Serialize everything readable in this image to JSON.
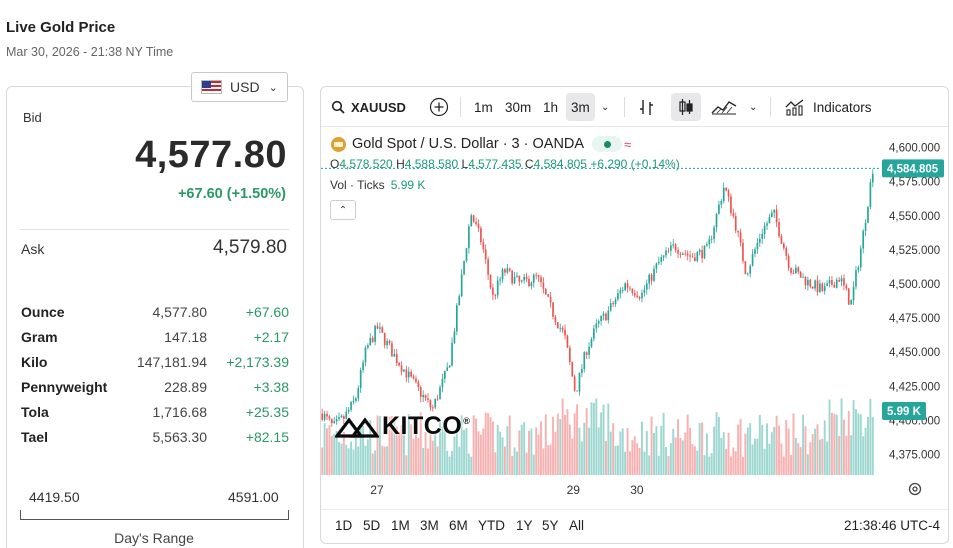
{
  "page": {
    "title": "Live Gold Price",
    "timestamp": "Mar 30, 2026 - 21:38 NY Time",
    "currency": "USD"
  },
  "quote": {
    "bid_label": "Bid",
    "bid": "4,577.80",
    "change": "+67.60 (+1.50%)",
    "ask_label": "Ask",
    "ask": "4,579.80"
  },
  "units": [
    {
      "name": "Ounce",
      "value": "4,577.80",
      "change": "+67.60"
    },
    {
      "name": "Gram",
      "value": "147.18",
      "change": "+2.17"
    },
    {
      "name": "Kilo",
      "value": "147,181.94",
      "change": "+2,173.39"
    },
    {
      "name": "Pennyweight",
      "value": "228.89",
      "change": "+3.38"
    },
    {
      "name": "Tola",
      "value": "1,716.68",
      "change": "+25.35"
    },
    {
      "name": "Tael",
      "value": "5,563.30",
      "change": "+82.15"
    }
  ],
  "day_range": {
    "low": "4419.50",
    "high": "4591.00",
    "label": "Day's Range"
  },
  "toolbar": {
    "symbol": "XAUUSD",
    "timeframes": [
      "1m",
      "30m",
      "1h",
      "3m"
    ],
    "selected": "3m",
    "indicators_label": "Indicators"
  },
  "legend": {
    "title": "Gold Spot / U.S. Dollar · 3 · OANDA",
    "approx": "≈",
    "o_label": "O",
    "o": "4,578.520",
    "h_label": "H",
    "h": "4,588.580",
    "l_label": "L",
    "l": "4,577.435",
    "c_label": "C",
    "c": "4,584.805",
    "chg": "+6.290 (+0.14%)",
    "vol_label": "Vol · Ticks",
    "vol_value": "5.99 K"
  },
  "ranges": [
    "1D",
    "5D",
    "1M",
    "3M",
    "6M",
    "YTD",
    "1Y",
    "5Y",
    "All"
  ],
  "clock": "21:38:46 UTC-4",
  "watermark": "KITCO",
  "colors": {
    "up": "#26a69a",
    "down": "#ef5350",
    "accent_green": "#2a9966"
  },
  "chart_data": {
    "type": "candlestick",
    "symbol": "XAUUSD",
    "interval": "3m",
    "y_ticks": [
      "4,375.000",
      "4,400.000",
      "4,425.000",
      "4,450.000",
      "4,475.000",
      "4,500.000",
      "4,525.000",
      "4,550.000",
      "4,575.000",
      "4,600.000"
    ],
    "y_range": [
      4360,
      4610
    ],
    "x_ticks": [
      {
        "label": "27",
        "t": 0.1
      },
      {
        "label": "29",
        "t": 0.455
      },
      {
        "label": "30",
        "t": 0.57
      }
    ],
    "last_price": "4,584.805",
    "last_volume": "5.99 K",
    "close_path": [
      {
        "t": 0.0,
        "y": 4405
      },
      {
        "t": 0.02,
        "y": 4395
      },
      {
        "t": 0.04,
        "y": 4402
      },
      {
        "t": 0.06,
        "y": 4415
      },
      {
        "t": 0.08,
        "y": 4452
      },
      {
        "t": 0.1,
        "y": 4468
      },
      {
        "t": 0.13,
        "y": 4448
      },
      {
        "t": 0.17,
        "y": 4425
      },
      {
        "t": 0.2,
        "y": 4408
      },
      {
        "t": 0.23,
        "y": 4440
      },
      {
        "t": 0.25,
        "y": 4495
      },
      {
        "t": 0.27,
        "y": 4552
      },
      {
        "t": 0.29,
        "y": 4530
      },
      {
        "t": 0.31,
        "y": 4490
      },
      {
        "t": 0.33,
        "y": 4510
      },
      {
        "t": 0.36,
        "y": 4500
      },
      {
        "t": 0.39,
        "y": 4505
      },
      {
        "t": 0.42,
        "y": 4478
      },
      {
        "t": 0.44,
        "y": 4462
      },
      {
        "t": 0.46,
        "y": 4420
      },
      {
        "t": 0.48,
        "y": 4452
      },
      {
        "t": 0.5,
        "y": 4470
      },
      {
        "t": 0.52,
        "y": 4480
      },
      {
        "t": 0.55,
        "y": 4500
      },
      {
        "t": 0.58,
        "y": 4492
      },
      {
        "t": 0.61,
        "y": 4515
      },
      {
        "t": 0.64,
        "y": 4528
      },
      {
        "t": 0.67,
        "y": 4520
      },
      {
        "t": 0.7,
        "y": 4525
      },
      {
        "t": 0.73,
        "y": 4572
      },
      {
        "t": 0.75,
        "y": 4545
      },
      {
        "t": 0.77,
        "y": 4508
      },
      {
        "t": 0.8,
        "y": 4540
      },
      {
        "t": 0.82,
        "y": 4552
      },
      {
        "t": 0.85,
        "y": 4512
      },
      {
        "t": 0.88,
        "y": 4502
      },
      {
        "t": 0.91,
        "y": 4495
      },
      {
        "t": 0.94,
        "y": 4505
      },
      {
        "t": 0.96,
        "y": 4485
      },
      {
        "t": 0.98,
        "y": 4530
      },
      {
        "t": 1.0,
        "y": 4585
      }
    ]
  }
}
